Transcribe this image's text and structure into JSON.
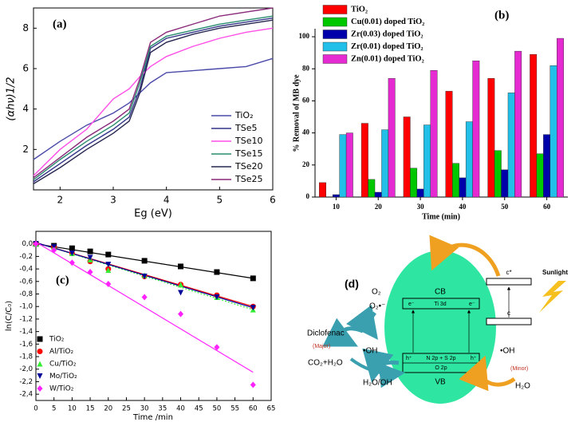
{
  "chart_data": [
    {
      "type": "line",
      "panel_label": "(a)",
      "x_label": "Eg (eV)",
      "y_label": "(αhν)1/2",
      "x": [
        1.5,
        2,
        2.5,
        3,
        3.3,
        3.5,
        3.7,
        4,
        4.5,
        5,
        5.5,
        6
      ],
      "xlim": [
        1.5,
        6
      ],
      "xticks": [
        2,
        3,
        4,
        5,
        6
      ],
      "ylim": [
        0,
        9
      ],
      "yticks": [
        2,
        4,
        6,
        8
      ],
      "legend": "right",
      "series": [
        {
          "name": "TiO₂",
          "color": "#4a4aa8",
          "values": [
            1.5,
            2.4,
            3.2,
            3.8,
            4.3,
            4.8,
            5.3,
            5.8,
            5.9,
            6.0,
            6.1,
            6.5
          ]
        },
        {
          "name": "TSe5",
          "color": "#34348a",
          "values": [
            0.4,
            1.3,
            2.2,
            3.0,
            3.6,
            5.0,
            7.0,
            7.5,
            7.8,
            8.1,
            8.3,
            8.5
          ]
        },
        {
          "name": "TSe10",
          "color": "#ff4fe6",
          "values": [
            0.7,
            2.0,
            3.0,
            4.5,
            5.0,
            5.6,
            6.1,
            6.6,
            7.1,
            7.5,
            7.8,
            8.0
          ]
        },
        {
          "name": "TSe15",
          "color": "#2a8c6e",
          "values": [
            0.5,
            1.5,
            2.4,
            3.2,
            3.8,
            5.3,
            7.1,
            7.6,
            7.9,
            8.2,
            8.4,
            8.6
          ]
        },
        {
          "name": "TSe20",
          "color": "#262650",
          "values": [
            0.3,
            1.1,
            2.0,
            2.8,
            3.4,
            4.8,
            6.8,
            7.3,
            7.7,
            8.0,
            8.2,
            8.4
          ]
        },
        {
          "name": "TSe25",
          "color": "#8a2a7a",
          "values": [
            0.6,
            1.6,
            2.6,
            3.4,
            4.0,
            5.5,
            7.3,
            7.8,
            8.2,
            8.6,
            8.8,
            9.0
          ]
        }
      ]
    },
    {
      "type": "bar",
      "panel_label": "(b)",
      "x_label": "Time (min)",
      "y_label": "% Removal of MB dye",
      "categories": [
        "10",
        "20",
        "30",
        "40",
        "50",
        "60"
      ],
      "ylim": [
        0,
        105
      ],
      "yticks": [
        0,
        20,
        40,
        60,
        80,
        100
      ],
      "legend": "top-left",
      "series": [
        {
          "name": "TiO₂",
          "color": "#ff0000",
          "values": [
            9,
            46,
            50,
            66,
            74,
            89
          ]
        },
        {
          "name": "Cu(0.01) doped TiO₂",
          "color": "#00c800",
          "values": [
            0,
            11,
            18,
            21,
            29,
            27
          ]
        },
        {
          "name": "Zr(0.03) doped TiO₂",
          "color": "#0000aa",
          "values": [
            1.5,
            3,
            5,
            12,
            17,
            39
          ]
        },
        {
          "name": "Zr(0.01) doped TiO₂",
          "color": "#22bfe8",
          "values": [
            39,
            42,
            45,
            47,
            65,
            82
          ]
        },
        {
          "name": "Zn(0.01) doped TiO₂",
          "color": "#e62ad2",
          "values": [
            40,
            74,
            79,
            85,
            91,
            99
          ]
        }
      ]
    },
    {
      "type": "scatter",
      "panel_label": "(c)",
      "x_label": "Time /min",
      "y_label": "ln(C/C₀)",
      "xlim": [
        0,
        65
      ],
      "xticks": [
        0,
        5,
        10,
        15,
        20,
        25,
        30,
        35,
        40,
        45,
        50,
        55,
        60,
        65
      ],
      "ylim": [
        -2.5,
        0.2
      ],
      "yticks": [
        {
          "value": 0,
          "label": "0,0"
        },
        {
          "value": -0.2,
          "label": "-0,2"
        },
        {
          "value": -0.4,
          "label": "-0,4"
        },
        {
          "value": -0.6,
          "label": "-0,6"
        },
        {
          "value": -0.8,
          "label": "-0,8"
        },
        {
          "value": -1.0,
          "label": "-1,0"
        },
        {
          "value": -1.2,
          "label": "-1,2"
        },
        {
          "value": -1.4,
          "label": "-1,4"
        },
        {
          "value": -1.6,
          "label": "-1,6"
        },
        {
          "value": -1.8,
          "label": "-1,8"
        },
        {
          "value": -2.0,
          "label": "-2,0"
        },
        {
          "value": -2.2,
          "label": "-2,2"
        },
        {
          "value": -2.4,
          "label": "-2,4"
        }
      ],
      "x": [
        0,
        5,
        10,
        15,
        20,
        30,
        40,
        50,
        60
      ],
      "trend_x": [
        0,
        60
      ],
      "legend": "bottom-left",
      "series": [
        {
          "name": "TiO₂",
          "color": "#000000",
          "marker": "square",
          "values": [
            0,
            -0.03,
            -0.07,
            -0.12,
            -0.17,
            -0.27,
            -0.36,
            -0.45,
            -0.55
          ],
          "trend": [
            0,
            -0.55
          ]
        },
        {
          "name": "Al/TiO₂",
          "color": "#ff0000",
          "marker": "circle",
          "values": [
            0,
            -0.05,
            -0.15,
            -0.28,
            -0.4,
            -0.52,
            -0.65,
            -0.82,
            -1.0
          ],
          "trend": [
            0.02,
            -1.0
          ]
        },
        {
          "name": "Cu/TiO₂",
          "color": "#33ee33",
          "marker": "triangle",
          "values": [
            0,
            -0.05,
            -0.15,
            -0.25,
            -0.42,
            -0.5,
            -0.65,
            -0.85,
            -1.05
          ],
          "trend": [
            0.02,
            -1.05
          ]
        },
        {
          "name": "Mo/TiO₂",
          "color": "#000099",
          "marker": "down-triangle",
          "values": [
            0,
            -0.05,
            -0.15,
            -0.22,
            -0.33,
            -0.52,
            -0.78,
            -0.85,
            -1.02
          ],
          "trend": [
            0.02,
            -1.02
          ]
        },
        {
          "name": "W/TiO₂",
          "color": "#ff22ff",
          "marker": "diamond",
          "values": [
            0,
            -0.1,
            -0.3,
            -0.45,
            -0.64,
            -0.85,
            -1.12,
            -1.65,
            -2.25
          ],
          "trend": [
            0.03,
            -2.05
          ]
        }
      ]
    }
  ],
  "diagram": {
    "labels": [
      "(d)",
      "O₂",
      "O₂•⁻",
      "CB",
      "Ti 3d",
      "e⁻",
      "e⁻",
      "Diclofenac",
      "(Major)",
      "•OH",
      "CO₂+H₂O",
      "N 2p + S 2p",
      "O 2p",
      "h⁺",
      "h⁺",
      "VB",
      "H₂O/OH",
      "•OH",
      "(Minor)",
      "H₂O",
      "c*",
      "c",
      "Sunlight"
    ]
  }
}
